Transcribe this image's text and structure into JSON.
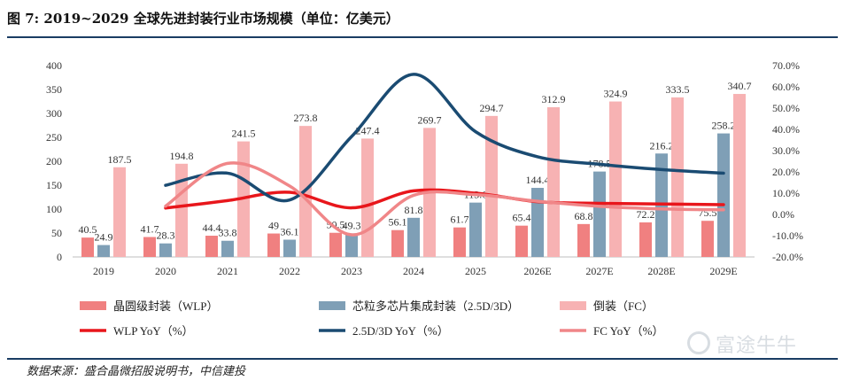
{
  "title": "图 7: 2019~2029 全球先进封装行业市场规模（单位：亿美元）",
  "source": "数据来源：盛合晶微招股说明书，中信建投",
  "watermark": "富途牛牛",
  "chart_data": {
    "type": "bar",
    "categories": [
      "2019",
      "2020",
      "2021",
      "2022",
      "2023",
      "2024",
      "2025",
      "2026E",
      "2027E",
      "2028E",
      "2029E"
    ],
    "ylim": [
      0,
      400
    ],
    "yticks": [
      "0",
      "50",
      "100",
      "150",
      "200",
      "250",
      "300",
      "350",
      "400"
    ],
    "y2lim": [
      -20,
      70
    ],
    "y2ticks": [
      "-20.0%",
      "-10.0%",
      "0.0%",
      "10.0%",
      "20.0%",
      "30.0%",
      "40.0%",
      "50.0%",
      "60.0%",
      "70.0%"
    ],
    "series": [
      {
        "name": "晶圆级封装（WLP）",
        "kind": "bar",
        "color": "#f08080",
        "values": [
          40.5,
          41.7,
          44.4,
          49,
          50.5,
          56.1,
          61.7,
          65.4,
          68.8,
          72.2,
          75.5
        ],
        "labels": [
          "40.5",
          "41.7",
          "44.4",
          "49",
          "50.5",
          "56.1",
          "61.7",
          "65.4",
          "68.8",
          "72.2",
          "75.5"
        ]
      },
      {
        "name": "芯粒多芯片集成封装（2.5D/3D）",
        "kind": "bar",
        "color": "#7f9fb6",
        "values": [
          24.9,
          28.3,
          33.8,
          36.1,
          49.3,
          81.8,
          113.6,
          144.4,
          178.5,
          216.2,
          258.2
        ],
        "labels": [
          "24.9",
          "28.3",
          "33.8",
          "36.1",
          "49.3",
          "81.8",
          "113.6",
          "144.4",
          "178.5",
          "216.2",
          "258.2"
        ]
      },
      {
        "name": "倒装（FC）",
        "kind": "bar",
        "color": "#f7b2b3",
        "values": [
          187.5,
          194.8,
          241.5,
          273.8,
          247.4,
          269.7,
          294.7,
          312.9,
          324.9,
          333.5,
          340.7
        ],
        "labels": [
          "187.5",
          "194.8",
          "241.5",
          "273.8",
          "247.4",
          "269.7",
          "294.7",
          "312.9",
          "324.9",
          "333.5",
          "340.7"
        ]
      },
      {
        "name": "WLP YoY（%）",
        "kind": "line",
        "axis": "right",
        "color": "#e8161b",
        "values": [
          null,
          3.0,
          6.5,
          10.4,
          3.1,
          11.1,
          10.0,
          6.0,
          5.2,
          4.9,
          4.6
        ]
      },
      {
        "name": "2.5D/3D YoY（%）",
        "kind": "line",
        "axis": "right",
        "color": "#1a4b72",
        "values": [
          null,
          13.7,
          19.4,
          6.8,
          36.6,
          65.9,
          38.9,
          27.1,
          23.6,
          21.1,
          19.4
        ]
      },
      {
        "name": "FC YoY（%）",
        "kind": "line",
        "axis": "right",
        "color": "#f08688",
        "values": [
          null,
          3.9,
          24.0,
          13.4,
          -9.6,
          9.0,
          9.3,
          6.2,
          3.8,
          2.6,
          2.2
        ]
      }
    ],
    "grid": false,
    "legend": "bottom"
  }
}
